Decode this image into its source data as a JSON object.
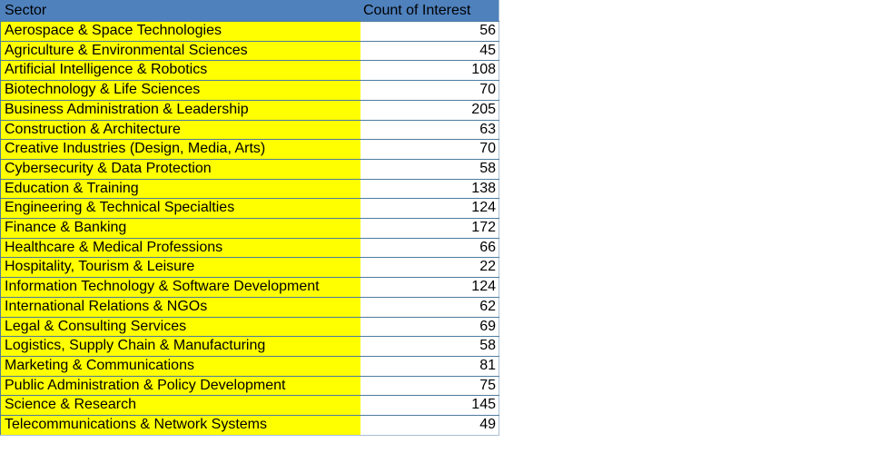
{
  "table": {
    "header": {
      "sector_label": "Sector",
      "count_label": "Count of Interest"
    },
    "rows": [
      {
        "sector": "Aerospace & Space Technologies",
        "count": "56"
      },
      {
        "sector": "Agriculture & Environmental Sciences",
        "count": "45"
      },
      {
        "sector": "Artificial Intelligence & Robotics",
        "count": "108"
      },
      {
        "sector": "Biotechnology & Life Sciences",
        "count": "70"
      },
      {
        "sector": "Business Administration & Leadership",
        "count": "205"
      },
      {
        "sector": "Construction & Architecture",
        "count": "63"
      },
      {
        "sector": "Creative Industries (Design, Media, Arts)",
        "count": "70"
      },
      {
        "sector": "Cybersecurity & Data Protection",
        "count": "58"
      },
      {
        "sector": "Education & Training",
        "count": "138"
      },
      {
        "sector": "Engineering & Technical Specialties",
        "count": "124"
      },
      {
        "sector": "Finance & Banking",
        "count": "172"
      },
      {
        "sector": "Healthcare & Medical Professions",
        "count": "66"
      },
      {
        "sector": "Hospitality, Tourism & Leisure",
        "count": "22"
      },
      {
        "sector": "Information Technology & Software Development",
        "count": "124"
      },
      {
        "sector": "International Relations & NGOs",
        "count": "62"
      },
      {
        "sector": "Legal & Consulting Services",
        "count": "69"
      },
      {
        "sector": "Logistics, Supply Chain & Manufacturing",
        "count": "58"
      },
      {
        "sector": "Marketing & Communications",
        "count": "81"
      },
      {
        "sector": "Public Administration & Policy Development",
        "count": "75"
      },
      {
        "sector": "Science & Research",
        "count": "145"
      },
      {
        "sector": "Telecommunications & Network Systems",
        "count": "49"
      }
    ]
  },
  "colors": {
    "header_bg": "#4F81BD",
    "sector_bg": "#FFFF00",
    "row_border_dark": "#4D7B9E",
    "outer_border_light": "#A9BFD3",
    "text": "#000000"
  }
}
